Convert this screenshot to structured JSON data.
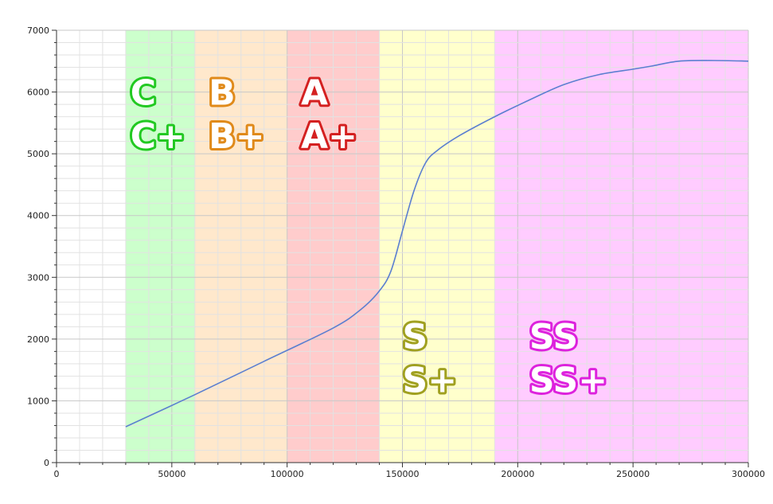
{
  "chart_data": {
    "type": "line",
    "title": "",
    "xlabel": "",
    "ylabel": "",
    "xlim": [
      0,
      300000
    ],
    "ylim": [
      0,
      7000
    ],
    "x_ticks": [
      0,
      50000,
      100000,
      150000,
      200000,
      250000,
      300000
    ],
    "y_ticks": [
      0,
      1000,
      2000,
      3000,
      4000,
      5000,
      6000,
      7000
    ],
    "x_tick_labels": [
      "0",
      "50000",
      "100000",
      "150000",
      "200000",
      "250000",
      "300000"
    ],
    "y_tick_labels": [
      "0",
      "1000",
      "2000",
      "3000",
      "4000",
      "5000",
      "6000",
      "7000"
    ],
    "grid": true,
    "series": [
      {
        "color": "#5b7fd0",
        "x": [
          30000,
          60000,
          90000,
          120000,
          132000,
          140000,
          145000,
          150000,
          155000,
          160000,
          165000,
          175000,
          190000,
          205000,
          220000,
          235000,
          250000,
          258000,
          270000,
          285000,
          300000
        ],
        "y": [
          580,
          1100,
          1640,
          2180,
          2480,
          2780,
          3100,
          3750,
          4400,
          4850,
          5050,
          5300,
          5600,
          5870,
          6120,
          6280,
          6370,
          6420,
          6500,
          6510,
          6500
        ]
      }
    ],
    "bands": [
      {
        "x0": 30000,
        "x1": 60000,
        "color": "#ccffcc"
      },
      {
        "x0": 60000,
        "x1": 100000,
        "color": "#ffe8cc"
      },
      {
        "x0": 100000,
        "x1": 140000,
        "color": "#ffcccc"
      },
      {
        "x0": 140000,
        "x1": 190000,
        "color": "#ffffcc"
      },
      {
        "x0": 190000,
        "x1": 300000,
        "color": "#ffccff"
      }
    ],
    "annotations": [
      {
        "text": "C",
        "x": 32000,
        "y": 6000,
        "color": "#22c922"
      },
      {
        "text": "C+",
        "x": 32000,
        "y": 5300,
        "color": "#22c922"
      },
      {
        "text": "B",
        "x": 66000,
        "y": 6000,
        "color": "#e08a1a"
      },
      {
        "text": "B+",
        "x": 66000,
        "y": 5300,
        "color": "#e08a1a"
      },
      {
        "text": "A",
        "x": 106000,
        "y": 6000,
        "color": "#d42020"
      },
      {
        "text": "A+",
        "x": 106000,
        "y": 5300,
        "color": "#d42020"
      },
      {
        "text": "S",
        "x": 150000,
        "y": 2050,
        "color": "#a0a020"
      },
      {
        "text": "S+",
        "x": 150000,
        "y": 1350,
        "color": "#a0a020"
      },
      {
        "text": "SS",
        "x": 205000,
        "y": 2050,
        "color": "#dd22dd"
      },
      {
        "text": "SS+",
        "x": 205000,
        "y": 1350,
        "color": "#dd22dd"
      }
    ]
  }
}
